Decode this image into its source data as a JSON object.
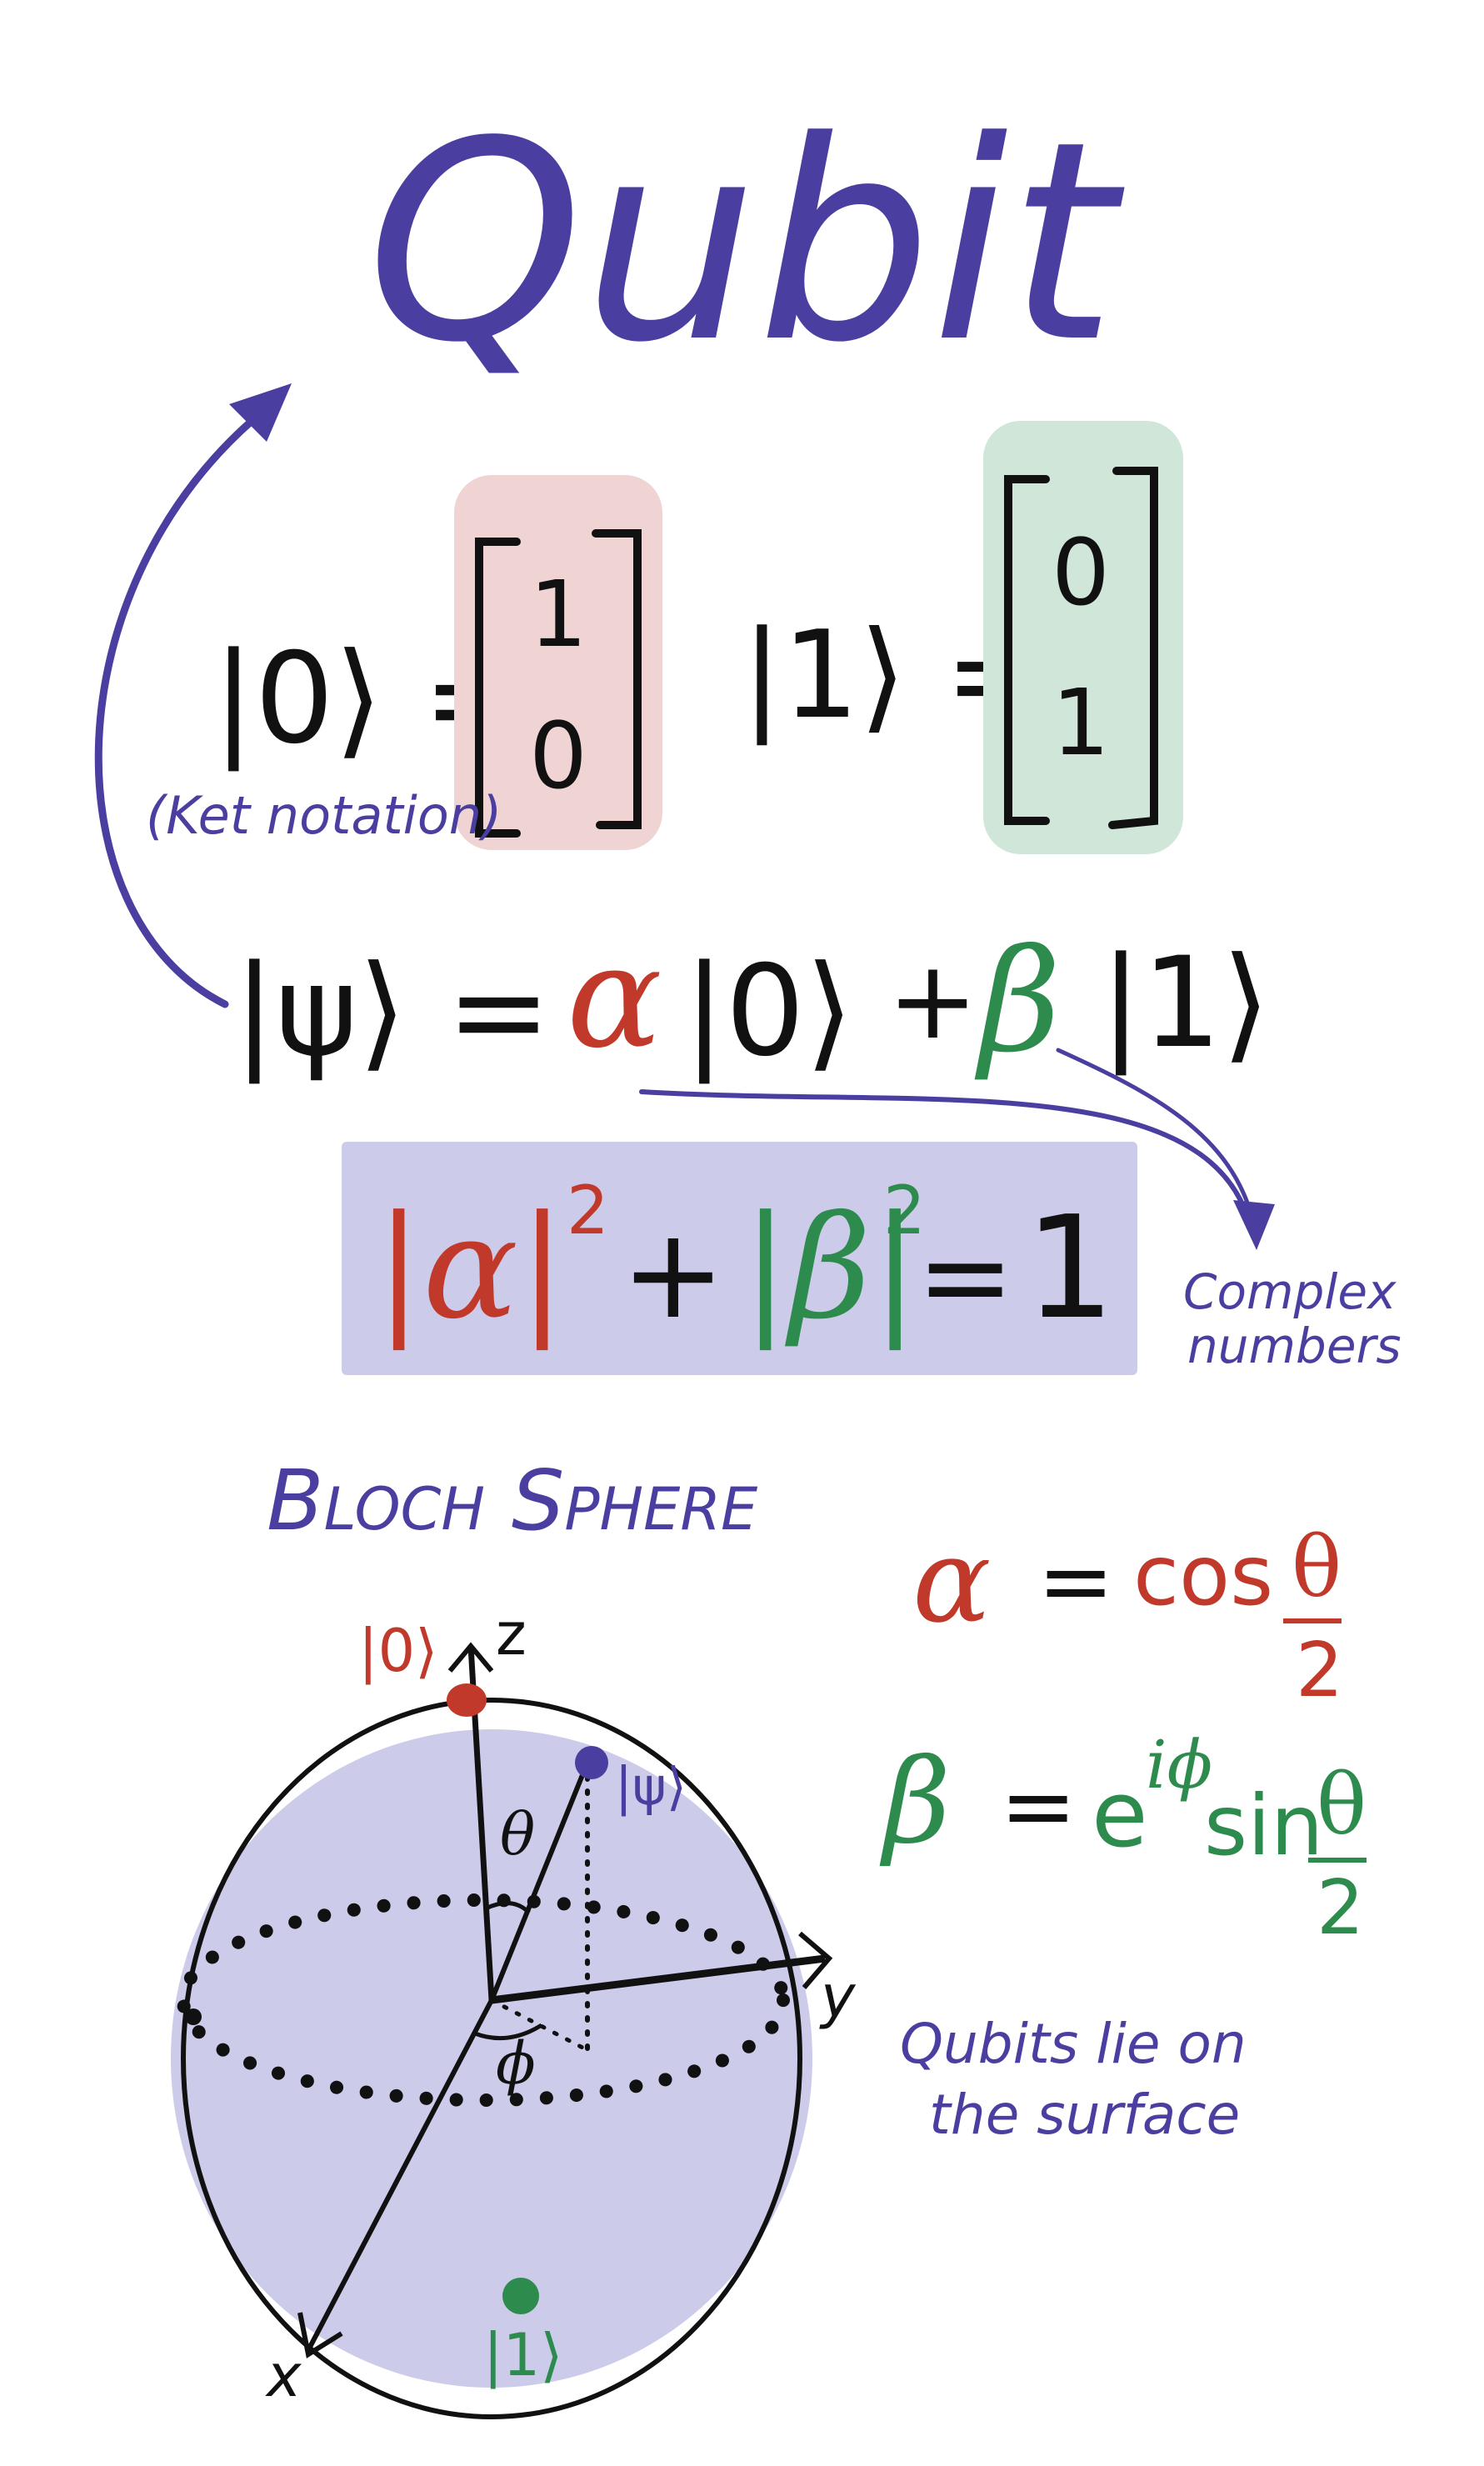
{
  "title": "Qubit",
  "ket_notation_note": "(Ket notation)",
  "kets": {
    "zero": {
      "lhs": "|0⟩ =",
      "vector": [
        "1",
        "0"
      ]
    },
    "one": {
      "lhs": "|1⟩ =",
      "vector": [
        "0",
        "1"
      ]
    }
  },
  "superposition": {
    "psi": "|ψ⟩ =",
    "alpha": "α",
    "ket0": "|0⟩",
    "plus": "+",
    "beta": "β",
    "ket1": "|1⟩"
  },
  "normalization": {
    "alpha_abs": "|α|",
    "beta_abs": "|β|",
    "exp": "2",
    "plus": "+",
    "equals": "=",
    "rhs": "1"
  },
  "complex_note": [
    "Complex",
    "numbers"
  ],
  "bloch": {
    "heading": "Bloch Sphere",
    "axis_z": "z",
    "axis_y": "y",
    "axis_x": "x",
    "theta": "θ",
    "phi": "ϕ",
    "label_ket0": "|0⟩",
    "label_ket1": "|1⟩",
    "label_psi": "|ψ⟩",
    "surface_note": [
      "Qubits lie on",
      "the surface"
    ]
  },
  "alpha_def": {
    "lhs": "α",
    "eq": "=",
    "rhs": "cos",
    "num": "θ",
    "den": "2"
  },
  "beta_def": {
    "lhs": "β",
    "eq": "=",
    "e": "e",
    "sup": "iϕ",
    "sin": "sin",
    "num": "θ",
    "den": "2"
  },
  "colors": {
    "ink": "#111111",
    "purple": "#4a3fa0",
    "red": "#c0392b",
    "green": "#2e8b4e",
    "pink_box": "#f0d4d4",
    "green_box": "#cfe6d9",
    "lavender": "#ccccea"
  }
}
